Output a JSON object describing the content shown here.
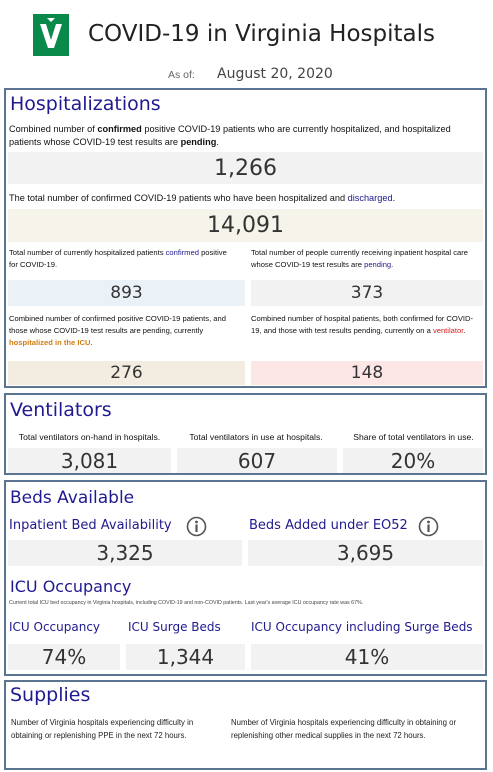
{
  "header": {
    "title": "COVID-19 in Virginia Hospitals",
    "as_of_label": "As of:",
    "date": "August 20, 2020"
  },
  "hospitalizations": {
    "title": "Hospitalizations",
    "current": {
      "description": [
        "Combined number of ",
        "confirmed",
        " positive COVID-19 patients who are currently hospitalized, and hospitalized patients whose COVID-19 test results are ",
        "pending",
        "."
      ],
      "value": "1,266"
    },
    "discharged": {
      "description": [
        "The total number of confirmed COVID-19 patients who have been hospitalized and ",
        "discharged",
        "."
      ],
      "value": "14,091"
    },
    "confirmed": {
      "description": [
        "Total number of currently hospitalized patients ",
        "confirmed",
        " positive for COVID-19."
      ],
      "value": "893"
    },
    "pending": {
      "description": [
        "Total number of people currently receiving inpatient hospital care whose COVID-19 test results are ",
        "pending",
        "."
      ],
      "value": "373"
    },
    "icu": {
      "description": [
        "Combined number of confirmed positive COVID-19 patients, and those whose COVID-19 test results are pending, currently ",
        "hospitalized in the ICU",
        "."
      ],
      "value": "276"
    },
    "ventilator": {
      "description": [
        "Combined number of hospital patients, both confirmed for COVID-19, and those with test results pending, currently on a ",
        "ventilator",
        "."
      ],
      "value": "148"
    }
  },
  "ventilators": {
    "title": "Ventilators",
    "metrics": [
      {
        "label": "Total ventilators on-hand in hospitals.",
        "value": "3,081"
      },
      {
        "label": "Total ventilators in use at hospitals.",
        "value": "607"
      },
      {
        "label": "Share of total ventilators in use.",
        "value": "20%"
      }
    ]
  },
  "beds": {
    "title": "Beds Available",
    "metrics": [
      {
        "label": "Inpatient Bed Availability",
        "value": "3,325"
      },
      {
        "label": "Beds Added under EO52",
        "value": "3,695"
      }
    ],
    "icu": {
      "title": "ICU Occupancy",
      "note": "Current total ICU bed occupancy in Virginia hospitals, including COVID-19 and non-COVID patients. Last year's average ICU occupancy rate was 67%.",
      "metrics": [
        {
          "label": "ICU Occupancy",
          "value": "74%"
        },
        {
          "label": "ICU Surge Beds",
          "value": "1,344"
        },
        {
          "label": "ICU Occupancy including Surge Beds",
          "value": "41%"
        }
      ]
    }
  },
  "supplies": {
    "title": "Supplies",
    "items": [
      "Number of Virginia hospitals experiencing difficulty in obtaining or replenishing PPE in the next 72 hours.",
      "Number of Virginia hospitals experiencing difficulty in obtaining or replenishing other medical supplies in the next 72 hours."
    ]
  }
}
